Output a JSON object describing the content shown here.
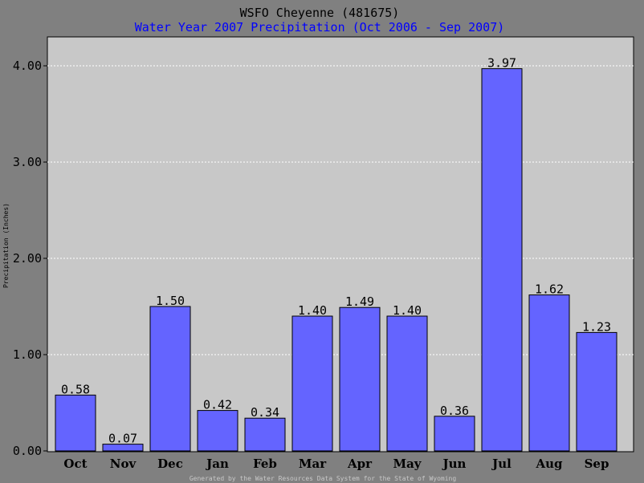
{
  "chart_data": {
    "type": "bar",
    "title": "WSFO Cheyenne (481675)",
    "subtitle": "Water Year 2007 Precipitation (Oct 2006 - Sep 2007)",
    "ylabel": "Precipitation (Inches)",
    "xlabel": "",
    "categories": [
      "Oct",
      "Nov",
      "Dec",
      "Jan",
      "Feb",
      "Mar",
      "Apr",
      "May",
      "Jun",
      "Jul",
      "Aug",
      "Sep"
    ],
    "values": [
      0.58,
      0.07,
      1.5,
      0.42,
      0.34,
      1.4,
      1.49,
      1.4,
      0.36,
      3.97,
      1.62,
      1.23
    ],
    "value_labels": [
      "0.58",
      "0.07",
      "1.50",
      "0.42",
      "0.34",
      "1.40",
      "1.49",
      "1.40",
      "0.36",
      "3.97",
      "1.62",
      "1.23"
    ],
    "ylim": [
      0,
      4.0
    ],
    "yticks": [
      "0.00",
      "1.00",
      "2.00",
      "3.00",
      "4.00"
    ],
    "grid": true,
    "legend": "none",
    "footer": "Generated by the Water Resources Data System for the State of Wyoming",
    "colors": {
      "background": "#808080",
      "plot_area": "#C8C8C8",
      "bar_fill": "#6464FF",
      "bar_stroke": "#000000",
      "subtitle": "#0000FF",
      "footer": "#C8C8C8",
      "grid": "#FFFFFF"
    }
  }
}
